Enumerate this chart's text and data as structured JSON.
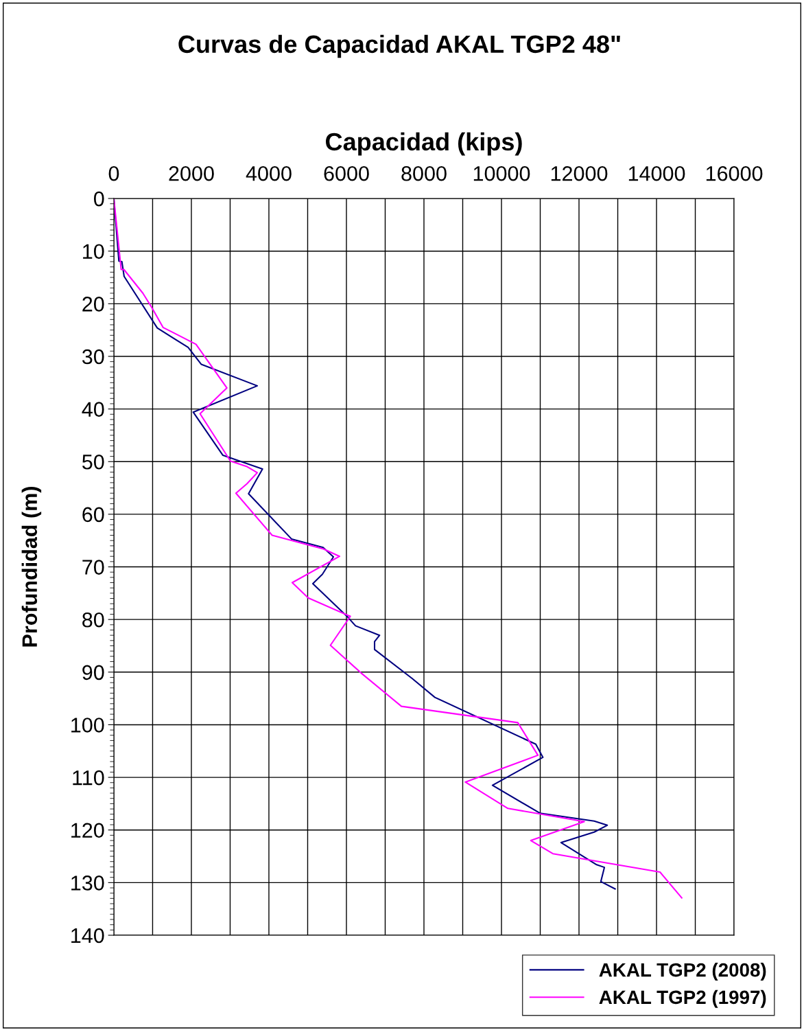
{
  "chart_data": {
    "type": "line",
    "title": "Curvas de Capacidad AKAL TGP2 48\"",
    "xlabel": "Capacidad (kips)",
    "ylabel": "Profundidad (m)",
    "xlim": [
      0,
      16000
    ],
    "xticks": [
      0,
      {
        "value": 1000,
        "label": null
      },
      2000,
      {
        "value": 3000,
        "label": null
      },
      4000,
      {
        "value": 5000,
        "label": null
      },
      6000,
      {
        "value": 7000,
        "label": null
      },
      8000,
      {
        "value": 9000,
        "label": null
      },
      10000,
      {
        "value": 11000,
        "label": null
      },
      12000,
      {
        "value": 13000,
        "label": null
      },
      14000,
      {
        "value": 15000,
        "label": null
      },
      16000
    ],
    "ylim": [
      140,
      0
    ],
    "yticks": [
      0,
      10,
      20,
      30,
      40,
      50,
      60,
      70,
      80,
      90,
      100,
      110,
      120,
      130,
      140
    ],
    "grid": true,
    "legend": "bottom right",
    "marker": "none",
    "line_style": "solid",
    "series": [
      {
        "name": "AKAL TGP2 (2008)",
        "color": "#000080",
        "x": [
          0,
          130,
          207,
          265,
          1120,
          1917,
          2253,
          3700,
          2047,
          2814,
          3835,
          3475,
          4584,
          5398,
          5664,
          5381,
          5133,
          6041,
          6235,
          6855,
          6726,
          6726,
          7694,
          8283,
          10885,
          11069,
          9768,
          10990,
          12393,
          12729,
          12393,
          11538,
          12455,
          12655,
          12564,
          12931
        ],
        "values": [
          0,
          11.9,
          12,
          14.8,
          24.6,
          28.3,
          31.5,
          35.6,
          40.6,
          48.8,
          51.4,
          56.1,
          64.7,
          66.3,
          68.1,
          71.4,
          73.2,
          79.6,
          81.2,
          83.0,
          84.2,
          85.7,
          91.2,
          94.8,
          103.7,
          106.2,
          111.5,
          116.8,
          118.3,
          119.1,
          120.4,
          122.4,
          126.6,
          127.1,
          129.8,
          131.2
        ]
      },
      {
        "name": "AKAL TGP2 (1997)",
        "color": "#ff00ff",
        "x": [
          0,
          189,
          260,
          749,
          986,
          1269,
          2119,
          2915,
          2224,
          3009,
          3422,
          3700,
          3434,
          3150,
          4083,
          5410,
          5823,
          4602,
          5015,
          6100,
          5587,
          6384,
          7419,
          10421,
          10940,
          9067,
          10165,
          12136,
          10757,
          11325,
          14090,
          14651
        ],
        "values": [
          0,
          13.5,
          13.5,
          18.0,
          20.8,
          24.5,
          27.7,
          36.0,
          40.9,
          49.9,
          50.9,
          52.1,
          54.2,
          56.0,
          64.0,
          66.6,
          68.0,
          73.0,
          75.9,
          79.4,
          84.9,
          90.2,
          96.5,
          99.6,
          105.8,
          110.9,
          115.9,
          118.4,
          122.0,
          124.5,
          128.0,
          132.9
        ]
      }
    ]
  }
}
